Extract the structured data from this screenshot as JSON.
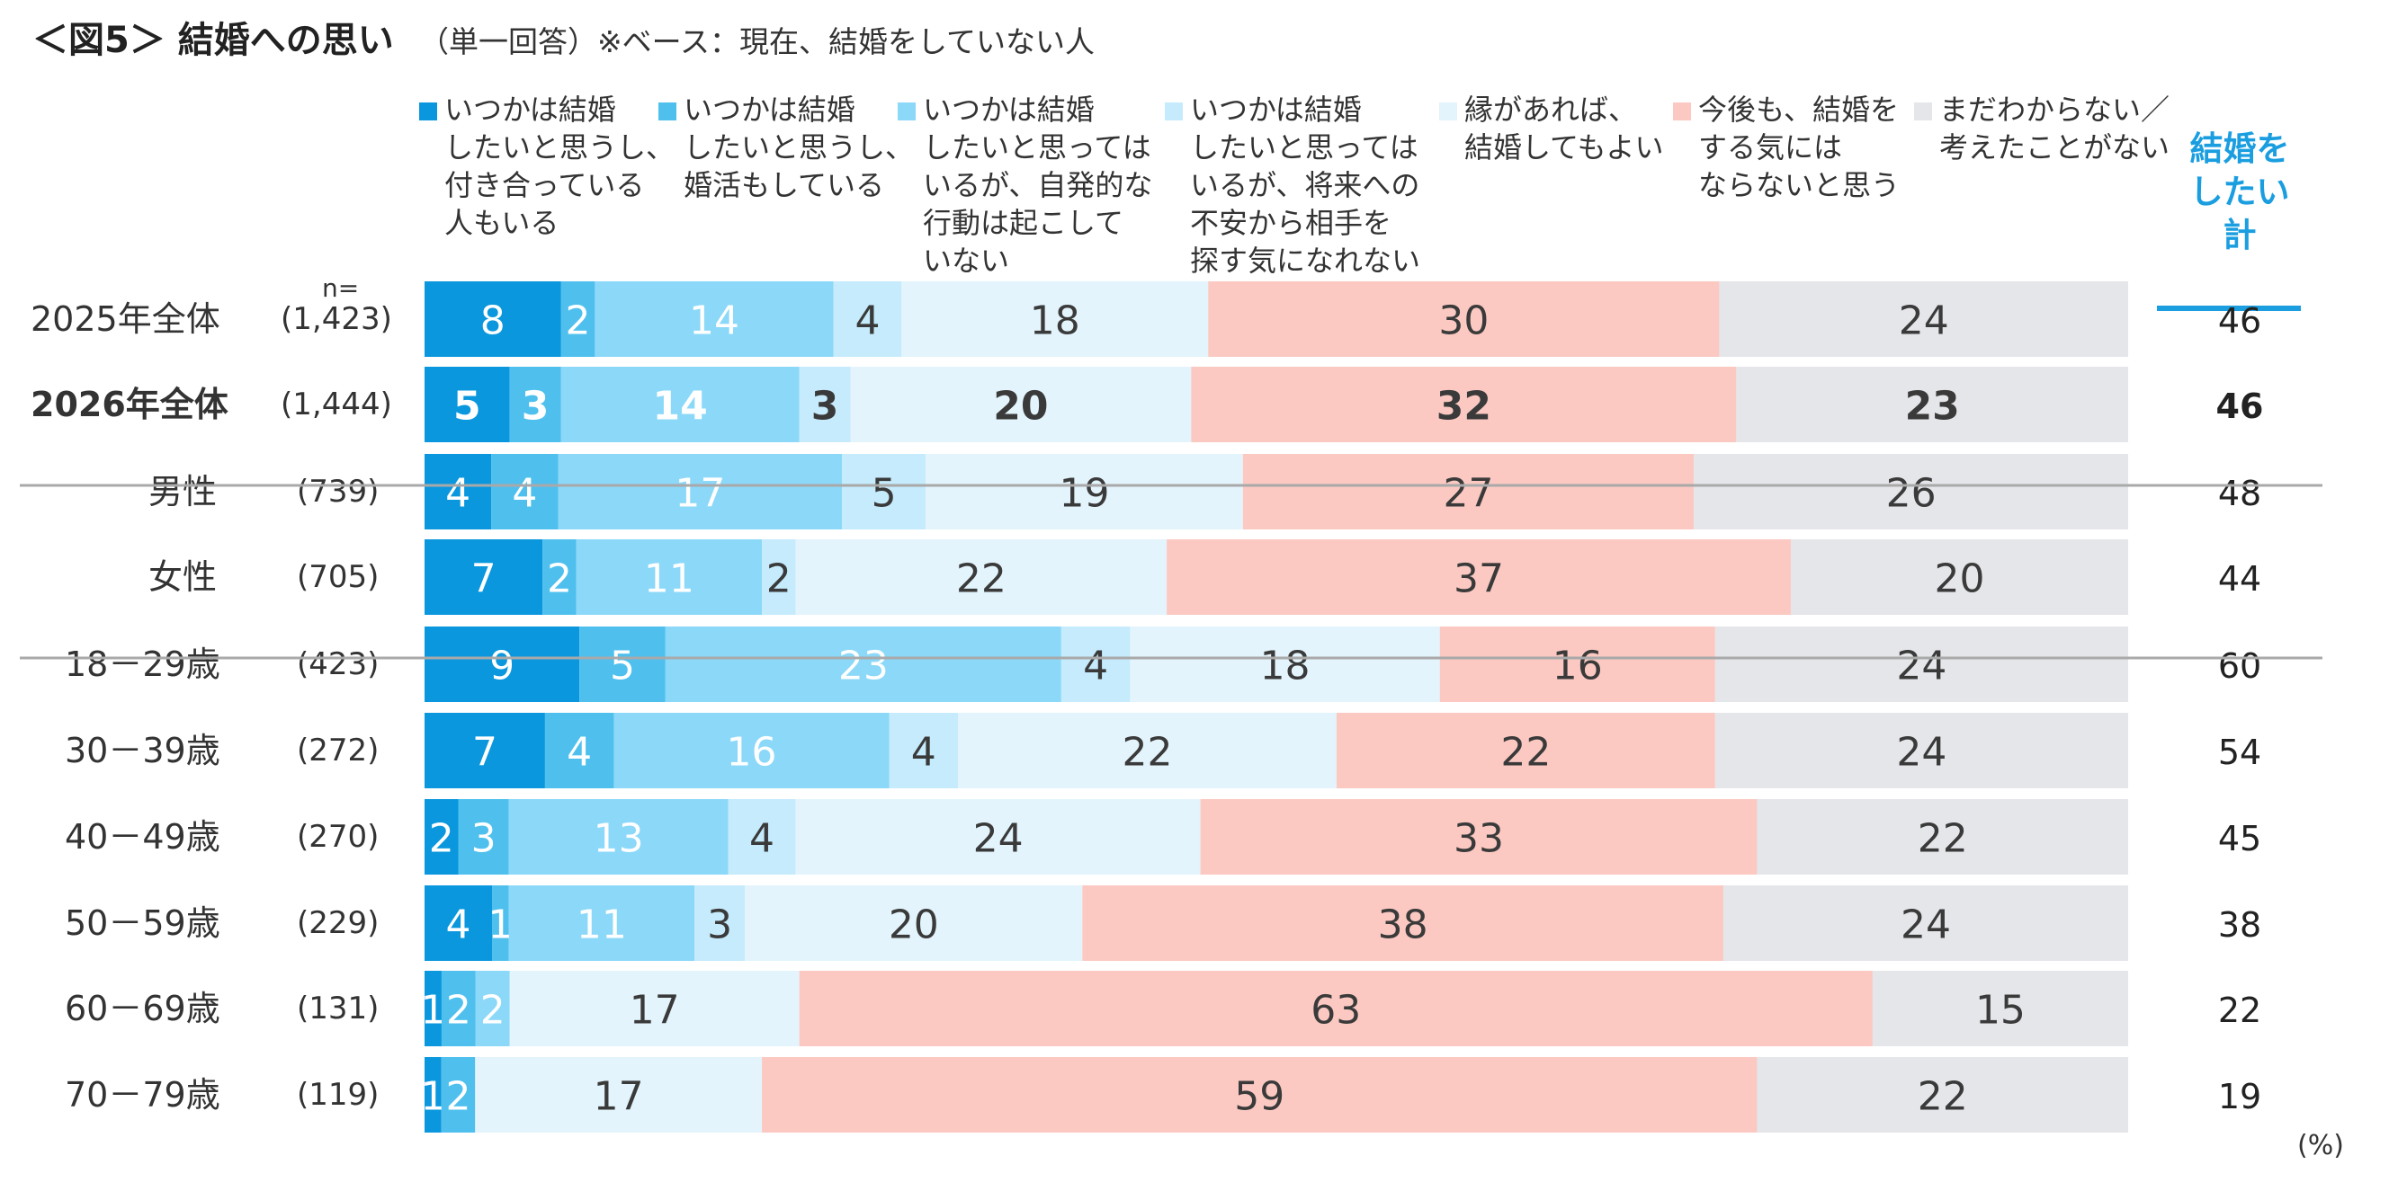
{
  "title": {
    "main": "＜図5＞ 結婚への思い",
    "sub": "（単一回答）※ベース：現在、結婚をしていない人"
  },
  "colors": {
    "segments": [
      "#0a97dd",
      "#4fc0ee",
      "#8cd8f9",
      "#c5ebfc",
      "#e3f4fc",
      "#fbc9c2",
      "#e5e6ea"
    ],
    "total_header": "#1a9ee0",
    "divider": "#a9a9a9",
    "white_text": "#ffffff",
    "dark_text": "#3a3a3a"
  },
  "n_header": "n=",
  "unit_label": "(%)",
  "chart_data": {
    "type": "stacked-bar-horizontal",
    "title": "結婚への思い",
    "xlim": [
      0,
      100
    ],
    "legend": [
      [
        "いつかは結婚",
        "したいと思うし、",
        "付き合っている",
        "人もいる"
      ],
      [
        "いつかは結婚",
        "したいと思うし、",
        "婚活もしている"
      ],
      [
        "いつかは結婚",
        "したいと思っては",
        "いるが、自発的な",
        "行動は起こして",
        "いない"
      ],
      [
        "いつかは結婚",
        "したいと思っては",
        "いるが、将来への",
        "不安から相手を",
        "探す気になれない"
      ],
      [
        "縁があれば、",
        "結婚してもよい"
      ],
      [
        "今後も、結婚を",
        "する気には",
        "ならないと思う"
      ],
      [
        "まだわからない／",
        "考えたことがない"
      ]
    ],
    "total_header": [
      "結婚を",
      "したい",
      "計"
    ],
    "rows": [
      {
        "label": "2025年全体",
        "n": "(1,423)",
        "values": [
          8,
          2,
          14,
          4,
          18,
          30,
          24
        ],
        "total": 46,
        "bold": false
      },
      {
        "label": "2026年全体",
        "n": "(1,444)",
        "values": [
          5,
          3,
          14,
          3,
          20,
          32,
          23
        ],
        "total": 46,
        "bold": true
      },
      {
        "label": "男性",
        "n": "(739)",
        "values": [
          4,
          4,
          17,
          5,
          19,
          27,
          26
        ],
        "total": 48,
        "bold": false
      },
      {
        "label": "女性",
        "n": "(705)",
        "values": [
          7,
          2,
          11,
          2,
          22,
          37,
          20
        ],
        "total": 44,
        "bold": false
      },
      {
        "label": "18－29歳",
        "n": "(423)",
        "values": [
          9,
          5,
          23,
          4,
          18,
          16,
          24
        ],
        "total": 60,
        "bold": false
      },
      {
        "label": "30－39歳",
        "n": "(272)",
        "values": [
          7,
          4,
          16,
          4,
          22,
          22,
          24
        ],
        "total": 54,
        "bold": false
      },
      {
        "label": "40－49歳",
        "n": "(270)",
        "values": [
          2,
          3,
          13,
          4,
          24,
          33,
          22
        ],
        "total": 45,
        "bold": false
      },
      {
        "label": "50－59歳",
        "n": "(229)",
        "values": [
          4,
          1,
          11,
          3,
          20,
          38,
          24
        ],
        "total": 38,
        "bold": false
      },
      {
        "label": "60－69歳",
        "n": "(131)",
        "values": [
          1,
          2,
          2,
          17,
          63,
          15
        ],
        "total": 22,
        "bold": false,
        "segments": [
          0,
          1,
          2,
          4,
          5,
          6
        ]
      },
      {
        "label": "70－79歳",
        "n": "(119)",
        "values": [
          1,
          2,
          17,
          59,
          22
        ],
        "total": 19,
        "bold": false,
        "segments": [
          0,
          1,
          4,
          5,
          6
        ]
      }
    ]
  }
}
